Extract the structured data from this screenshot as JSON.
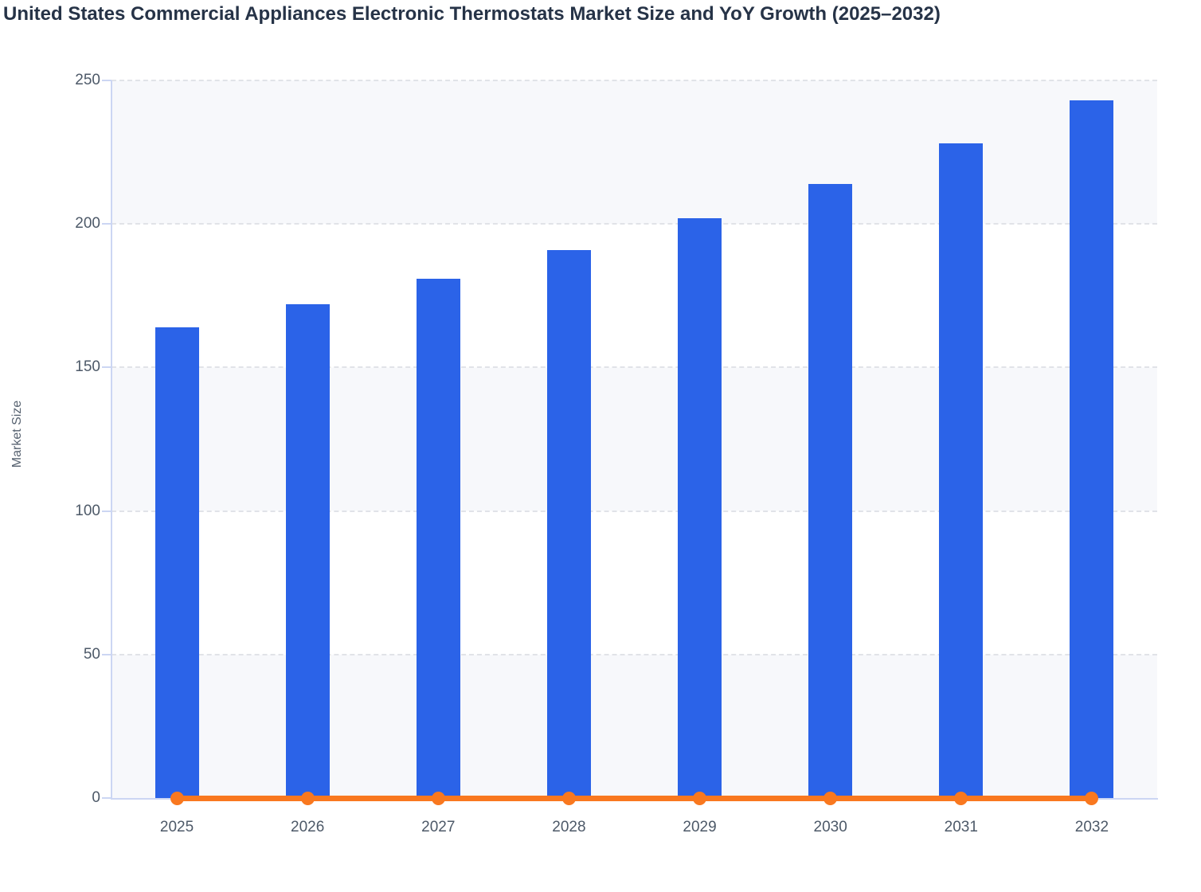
{
  "chart_data": {
    "type": "bar",
    "title": "United States Commercial Appliances Electronic Thermostats Market Size and YoY Growth (2025–2032)",
    "xlabel": "",
    "ylabel": "Market Size",
    "categories": [
      "2025",
      "2026",
      "2027",
      "2028",
      "2029",
      "2030",
      "2031",
      "2032"
    ],
    "series": [
      {
        "name": "Market Size",
        "type": "bar",
        "color": "#2b63e8",
        "values": [
          164,
          172,
          181,
          191,
          202,
          214,
          228,
          243
        ]
      },
      {
        "name": "YoY Growth",
        "type": "line",
        "color": "#f9781f",
        "values": [
          0,
          0,
          0,
          0,
          0,
          0,
          0,
          0
        ],
        "note": "YoY growth line with circular markers renders flat at ≈0 on the shared 0–250 axis (implied growth ≈ 5–7% per year)"
      }
    ],
    "ylim": [
      0,
      250
    ],
    "yticks": [
      0,
      50,
      100,
      150,
      200,
      250
    ],
    "grid": "horizontal dashed gridlines every 50 units with alternating row shading",
    "legend_position": "none visible"
  },
  "colors": {
    "bar_blue": "#2b63e8",
    "line_orange": "#f9781f",
    "row_band": "#f7f8fb",
    "gridline": "#e1e3e8",
    "axis_line": "#ccd6f3",
    "tick_label": "#4d5968",
    "title_text": "#263347"
  }
}
